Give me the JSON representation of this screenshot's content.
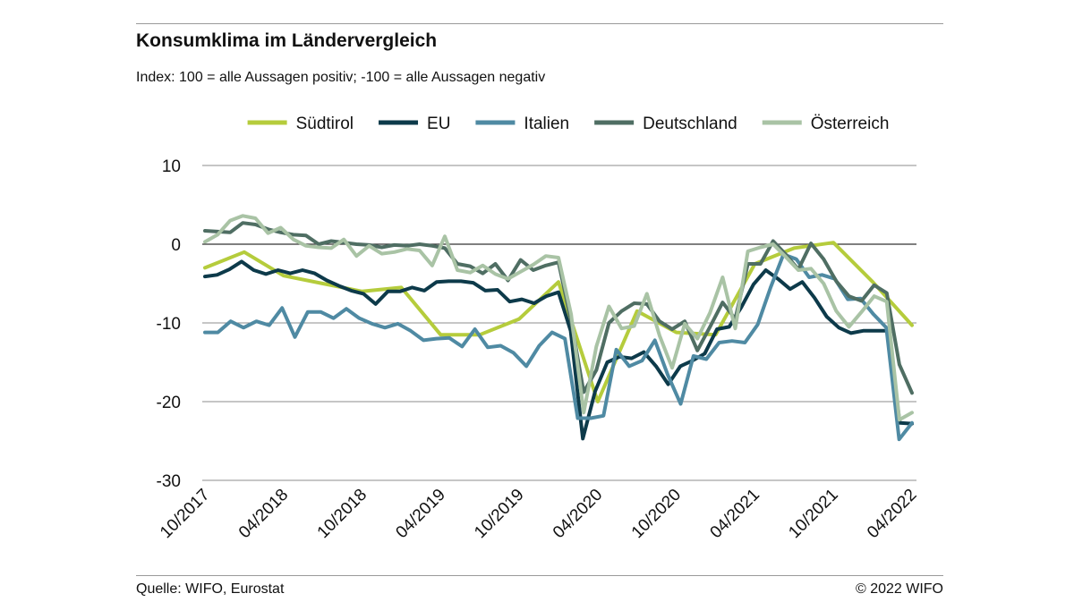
{
  "header": {
    "title": "Konsumklima im Ländervergleich",
    "subtitle": "Index: 100 = alle Aussagen positiv; -100 =  alle Aussagen negativ"
  },
  "footer": {
    "source": "Quelle: WIFO, Eurostat",
    "copyright": "© 2022 WIFO"
  },
  "chart_data": {
    "type": "line",
    "title": "Konsumklima im Ländervergleich",
    "subtitle": "Index: 100 = alle Aussagen positiv; -100 =  alle Aussagen negativ",
    "x_start": "10/2017",
    "x_end": "04/2022",
    "x_ticks": [
      "10/2017",
      "04/2018",
      "10/2018",
      "04/2019",
      "10/2019",
      "04/2020",
      "10/2020",
      "04/2021",
      "10/2021",
      "04/2022"
    ],
    "y_ticks": [
      10,
      0,
      -10,
      -20,
      -30
    ],
    "ylim": [
      -30,
      10
    ],
    "grid": "horizontal",
    "legend_position": "top",
    "series": [
      {
        "name": "Südtirol",
        "color": "#b5cc3c",
        "x": [
          "10/2017",
          "01/2018",
          "04/2018",
          "07/2018",
          "10/2018",
          "01/2019",
          "04/2019",
          "07/2019",
          "10/2019",
          "01/2020",
          "04/2020",
          "07/2020",
          "10/2020",
          "01/2021",
          "04/2021",
          "07/2021",
          "10/2021",
          "01/2022",
          "04/2022"
        ],
        "values": [
          -3,
          -1,
          -4,
          -5,
          -6,
          -5.5,
          -11.5,
          -11.5,
          -9.5,
          -4.8,
          -20,
          -8.5,
          -11.2,
          -11.5,
          -2.5,
          -0.5,
          0.2,
          -4.8,
          -10.3
        ]
      },
      {
        "name": "EU",
        "color": "#0d3a4a",
        "values": [
          -4.1,
          -3.9,
          -3.2,
          -2.2,
          -3.3,
          -3.8,
          -3.3,
          -3.7,
          -3.3,
          -3.7,
          -4.6,
          -5.3,
          -5.9,
          -6.3,
          -7.6,
          -6.0,
          -6.0,
          -5.5,
          -5.9,
          -4.8,
          -4.7,
          -4.7,
          -4.9,
          -5.9,
          -5.8,
          -7.3,
          -7.0,
          -7.5,
          -6.6,
          -6.1,
          -11.0,
          -24.7,
          -18.7,
          -15.0,
          -14.3,
          -14.5,
          -13.7,
          -15.5,
          -17.8,
          -15.5,
          -14.8,
          -13.9,
          -10.8,
          -10.5,
          -8.0,
          -5.1,
          -3.3,
          -4.4,
          -5.7,
          -4.8,
          -6.8,
          -9.2,
          -10.6,
          -11.3,
          -11.0,
          -11.0,
          -11.0,
          -22.7,
          -22.8
        ]
      },
      {
        "name": "Italien",
        "color": "#4f8aa3",
        "values": [
          -11.2,
          -11.2,
          -9.8,
          -10.6,
          -9.8,
          -10.3,
          -8.1,
          -11.8,
          -8.6,
          -8.6,
          -9.4,
          -8.2,
          -9.4,
          -10.1,
          -10.6,
          -10.1,
          -11.0,
          -12.2,
          -12.0,
          -11.9,
          -13.0,
          -10.8,
          -13.1,
          -12.9,
          -13.8,
          -15.5,
          -12.9,
          -11.2,
          -12.0,
          -22.1,
          -22.1,
          -21.8,
          -13.4,
          -15.5,
          -14.8,
          -12.2,
          -16.6,
          -20.3,
          -14.2,
          -14.6,
          -12.5,
          -12.3,
          -12.5,
          -10.2,
          -5.5,
          -1.3,
          -1.9,
          -4.2,
          -3.9,
          -4.4,
          -7.0,
          -6.9,
          -8.9,
          -10.6,
          -24.8,
          -22.7
        ]
      },
      {
        "name": "Deutschland",
        "color": "#4f6e63",
        "values": [
          1.7,
          1.6,
          1.5,
          2.7,
          2.5,
          1.9,
          1.5,
          1.2,
          1.1,
          0.0,
          0.4,
          0.2,
          0.0,
          -0.1,
          -0.4,
          -0.1,
          -0.2,
          0.0,
          -0.2,
          -0.5,
          -2.5,
          -2.8,
          -3.7,
          -2.5,
          -4.6,
          -2.0,
          -3.3,
          -2.7,
          -2.3,
          -9.7,
          -18.8,
          -16.0,
          -10.0,
          -8.5,
          -7.5,
          -7.6,
          -9.8,
          -10.8,
          -9.8,
          -13.5,
          -10.5,
          -7.4,
          -9.5,
          -2.5,
          -2.5,
          0.4,
          -1.3,
          -3.2,
          0.1,
          -1.9,
          -4.7,
          -6.6,
          -7.2,
          -5.2,
          -6.2,
          -15.3,
          -18.9
        ]
      },
      {
        "name": "Österreich",
        "color": "#a9c3a5",
        "values": [
          0.3,
          1.2,
          3.0,
          3.6,
          3.3,
          1.4,
          2.1,
          0.6,
          -0.2,
          -0.4,
          -0.5,
          0.6,
          -1.5,
          -0.2,
          -1.2,
          -1.0,
          -0.6,
          -0.8,
          -2.7,
          1.0,
          -3.3,
          -3.6,
          -2.7,
          -3.8,
          -4.4,
          -3.5,
          -2.6,
          -1.5,
          -1.7,
          -8.9,
          -21.4,
          -13.0,
          -7.9,
          -10.7,
          -10.4,
          -6.3,
          -11.6,
          -15.7,
          -10.1,
          -12.0,
          -8.7,
          -4.2,
          -10.7,
          -0.9,
          -0.4,
          0.0,
          -1.6,
          -3.3,
          -3.1,
          -5.0,
          -8.5,
          -10.5,
          -8.6,
          -6.6,
          -7.3,
          -22.3,
          -21.4
        ]
      }
    ]
  }
}
